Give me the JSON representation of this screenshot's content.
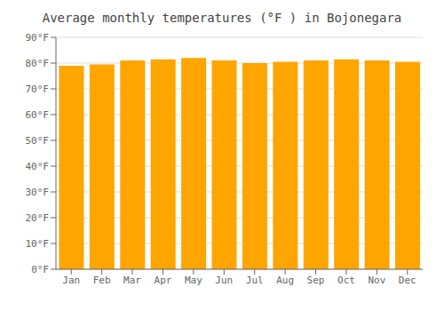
{
  "chart_data": {
    "type": "bar",
    "title": "Average monthly temperatures (°F ) in Bojonegara",
    "categories": [
      "Jan",
      "Feb",
      "Mar",
      "Apr",
      "May",
      "Jun",
      "Jul",
      "Aug",
      "Sep",
      "Oct",
      "Nov",
      "Dec"
    ],
    "values": [
      79,
      79.5,
      81,
      81.5,
      82,
      81,
      80,
      80.5,
      81,
      81.5,
      81,
      80.5
    ],
    "color": "#FFA500",
    "ylim": [
      0,
      90
    ],
    "yticks": [
      {
        "value": 0,
        "label": "0°F"
      },
      {
        "value": 10,
        "label": "10°F"
      },
      {
        "value": 20,
        "label": "20°F"
      },
      {
        "value": 30,
        "label": "30°F"
      },
      {
        "value": 40,
        "label": "40°F"
      },
      {
        "value": 50,
        "label": "50°F"
      },
      {
        "value": 60,
        "label": "60°F"
      },
      {
        "value": 70,
        "label": "70°F"
      },
      {
        "value": 80,
        "label": "80°F"
      },
      {
        "value": 90,
        "label": "90°F"
      }
    ],
    "grid": true
  }
}
